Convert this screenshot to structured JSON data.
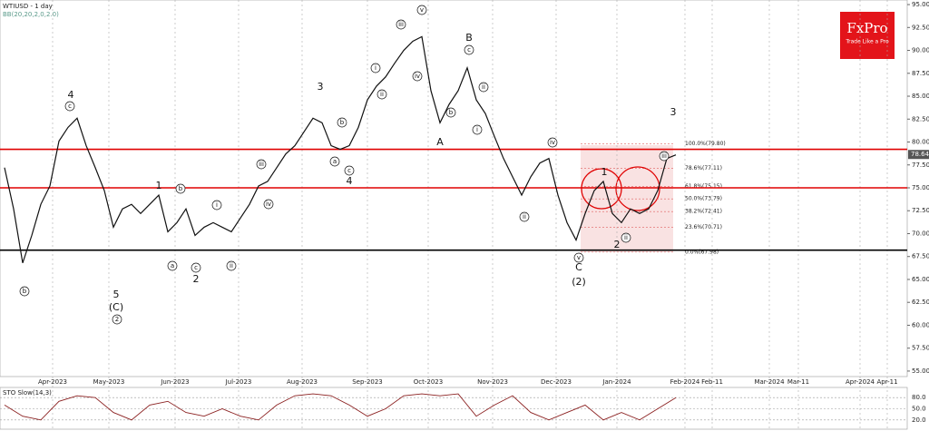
{
  "chart_data": {
    "type": "line",
    "title": "WTIUSD - 1 day",
    "indicator_label": "BB(20,20,2,0,2.0)",
    "brand": "FxPro",
    "brand_tagline": "Trade Like a Pro",
    "color": "#111111",
    "ylim": [
      54.4,
      95.5
    ],
    "yticks": [
      {
        "value": 95,
        "label": "95.00"
      },
      {
        "value": 92.5,
        "label": "92.50"
      },
      {
        "value": 90,
        "label": "90.00"
      },
      {
        "value": 87.5,
        "label": "87.50"
      },
      {
        "value": 85,
        "label": "85.00"
      },
      {
        "value": 82.5,
        "label": "82.50"
      },
      {
        "value": 80,
        "label": "80.00"
      },
      {
        "value": 77.5,
        "label": "77.50"
      },
      {
        "value": 75,
        "label": "75.00"
      },
      {
        "value": 72.5,
        "label": "72.50"
      },
      {
        "value": 70,
        "label": "70.00"
      },
      {
        "value": 67.5,
        "label": "67.50"
      },
      {
        "value": 65,
        "label": "65.00"
      },
      {
        "value": 62.5,
        "label": "62.50"
      },
      {
        "value": 60,
        "label": "60.00"
      },
      {
        "value": 57.5,
        "label": "57.50"
      },
      {
        "value": 55,
        "label": "55.00"
      }
    ],
    "xticks": [
      "Apr-2023",
      "May-2023",
      "Jun-2023",
      "Jul-2023",
      "Aug-2023",
      "Sep-2023",
      "Oct-2023",
      "Nov-2023",
      "Dec-2023",
      "Jan-2024",
      "Feb-2024",
      "Feb-11",
      "Mar-2024",
      "Mar-11",
      "Apr-2024",
      "Apr-11"
    ],
    "grid": true,
    "values": [
      77.2,
      72.7,
      66.8,
      69.8,
      73.2,
      75.2,
      80.1,
      81.6,
      82.6,
      79.6,
      77.2,
      74.7,
      70.7,
      72.7,
      73.2,
      72.2,
      73.2,
      74.2,
      70.2,
      71.2,
      72.7,
      69.8,
      70.7,
      71.2,
      70.7,
      70.2,
      71.7,
      73.2,
      75.2,
      75.7,
      77.2,
      78.7,
      79.6,
      81.1,
      82.6,
      82.1,
      79.6,
      79.2,
      79.6,
      81.6,
      84.6,
      86.1,
      87.1,
      88.6,
      90.0,
      91.0,
      91.5,
      85.6,
      82.1,
      84.1,
      85.6,
      88.1,
      84.6,
      83.1,
      80.6,
      78.2,
      76.2,
      74.2,
      76.2,
      77.7,
      78.2,
      74.2,
      71.2,
      69.3,
      72.2,
      74.7,
      75.7,
      72.2,
      71.2,
      72.7,
      72.2,
      72.7,
      74.7,
      78.2,
      78.6
    ],
    "last_price": 78.64,
    "levels": [
      {
        "value": 79.2,
        "color": "#e00000"
      },
      {
        "value": 75.0,
        "color": "#e00000"
      },
      {
        "value": 68.2,
        "color": "#000000"
      }
    ],
    "fib_levels": [
      {
        "value": 79.8,
        "label": "100.0%(79.80)"
      },
      {
        "value": 77.11,
        "label": "78.6%(77.11)"
      },
      {
        "value": 75.15,
        "label": "61.8%(75.15)"
      },
      {
        "value": 73.79,
        "label": "50.0%(73.79)"
      },
      {
        "value": 72.41,
        "label": "38.2%(72.41)"
      },
      {
        "value": 70.71,
        "label": "23.6%(70.71)"
      },
      {
        "value": 67.98,
        "label": "0.0%(67.98)"
      }
    ],
    "wave_labels": [
      "4",
      "5",
      "(C)",
      "1",
      "2",
      "3",
      "4",
      "B",
      "A",
      "C",
      "(2)",
      "1",
      "2",
      "3",
      "2",
      "b",
      "c",
      "a",
      "b",
      "c",
      "i",
      "ii",
      "iii",
      "iv",
      "a",
      "b",
      "c",
      "i",
      "ii",
      "iii",
      "iv",
      "v",
      "c",
      "b",
      "ii",
      "i",
      "iv",
      "ii",
      "v",
      "ii",
      "iii"
    ],
    "oscillator": {
      "title": "STO Slow(14,3)",
      "color": "#8b2020",
      "ylim": [
        0,
        100
      ],
      "yticks": [
        {
          "value": 80,
          "label": "80.0"
        },
        {
          "value": 50,
          "label": "50.0"
        },
        {
          "value": 20,
          "label": "20.0"
        }
      ],
      "values": [
        60,
        30,
        20,
        70,
        85,
        80,
        40,
        20,
        60,
        70,
        40,
        30,
        50,
        30,
        20,
        60,
        85,
        90,
        85,
        60,
        30,
        50,
        85,
        90,
        85,
        90,
        30,
        60,
        85,
        40,
        20,
        40,
        60,
        20,
        40,
        20,
        50,
        80
      ]
    }
  }
}
